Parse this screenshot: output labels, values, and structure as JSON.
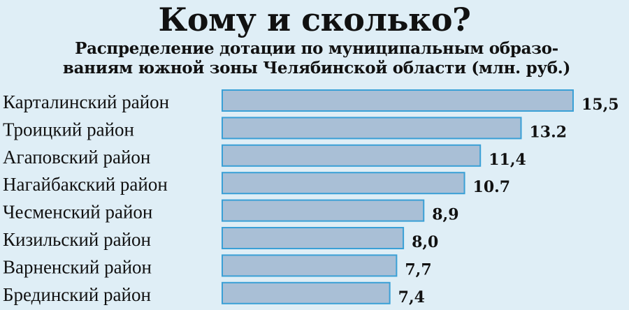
{
  "chart_data": {
    "type": "bar",
    "orientation": "horizontal",
    "title": "Кому и сколько?",
    "subtitle": "Распределение дотации по муниципальным образо-ваниям южной зоны Челябинской области (млн. руб.)",
    "subtitle_lines": [
      "Распределение дотации по муниципальным образо-",
      "ваниям южной зоны Челябинской области (млн. руб.)"
    ],
    "categories": [
      "Карталинский район",
      "Троицкий район",
      "Агаповский район",
      "Нагайбакский район",
      "Чесменский район",
      "Кизильский район",
      "Варненский район",
      "Брединский район"
    ],
    "values": [
      15.5,
      13.2,
      11.4,
      10.7,
      8.9,
      8.0,
      7.7,
      7.4
    ],
    "value_labels": [
      "15,5",
      "13.2",
      "11,4",
      "10.7",
      "8,9",
      "8,0",
      "7,7",
      "7,4"
    ],
    "xlim": [
      0,
      15.5
    ],
    "grid": false,
    "legend": "none",
    "colors": {
      "bar_fill": "#a9bfd6",
      "bar_stroke": "#3aa0d6",
      "background": "#dfeef6"
    }
  }
}
